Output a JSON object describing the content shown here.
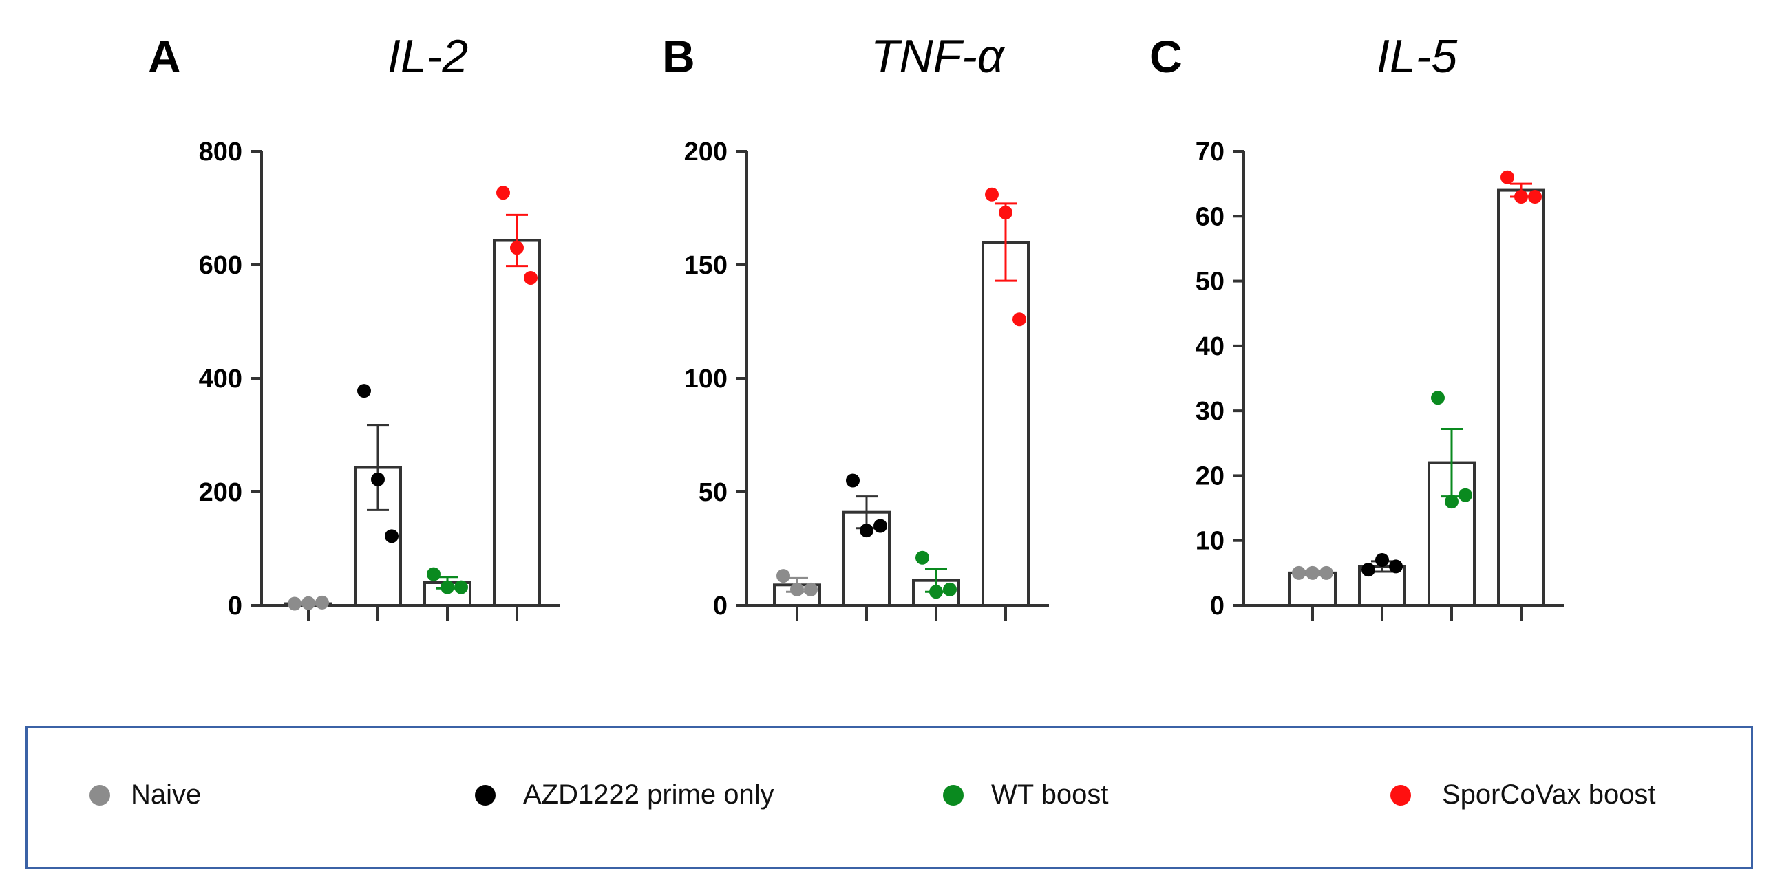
{
  "chart_data": [
    {
      "type": "bar",
      "panel": "A",
      "title": "IL-2",
      "categories": [
        "Naive",
        "AZD1222 prime only",
        "WT boost",
        "SporCoVax boost"
      ],
      "values": [
        3,
        243,
        40,
        643
      ],
      "errors": [
        2,
        75,
        10,
        45
      ],
      "points": [
        [
          3,
          4,
          5
        ],
        [
          378,
          222,
          122
        ],
        [
          55,
          32,
          32
        ],
        [
          727,
          630,
          577
        ]
      ],
      "ylim": [
        0,
        800
      ],
      "yticks": [
        0,
        200,
        400,
        600,
        800
      ]
    },
    {
      "type": "bar",
      "panel": "B",
      "title": "TNF-α",
      "categories": [
        "Naive",
        "AZD1222 prime only",
        "WT boost",
        "SporCoVax boost"
      ],
      "values": [
        9,
        41,
        11,
        160
      ],
      "errors": [
        3,
        7,
        5,
        17
      ],
      "points": [
        [
          13,
          7,
          7
        ],
        [
          55,
          33,
          35
        ],
        [
          21,
          6,
          7
        ],
        [
          181,
          173,
          126
        ]
      ],
      "ylim": [
        0,
        200
      ],
      "yticks": [
        0,
        50,
        100,
        150,
        200
      ]
    },
    {
      "type": "bar",
      "panel": "C",
      "title": "IL-5",
      "categories": [
        "Naive",
        "AZD1222 prime only",
        "WT boost",
        "SporCoVax boost"
      ],
      "values": [
        5,
        6,
        22,
        64
      ],
      "errors": [
        0.3,
        0.8,
        5.2,
        1
      ],
      "points": [
        [
          5,
          5,
          5
        ],
        [
          5.5,
          7,
          6
        ],
        [
          32,
          16,
          17
        ],
        [
          66,
          63,
          63
        ]
      ],
      "ylim": [
        0,
        70
      ],
      "yticks": [
        0,
        10,
        20,
        30,
        40,
        50,
        60,
        70
      ]
    }
  ],
  "legend": [
    {
      "label": "Naive",
      "color": "#8c8c8c"
    },
    {
      "label": "AZD1222 prime only",
      "color": "#000000"
    },
    {
      "label": "WT boost",
      "color": "#0a8a1f"
    },
    {
      "label": "SporCoVax boost",
      "color": "#ff1010"
    }
  ]
}
